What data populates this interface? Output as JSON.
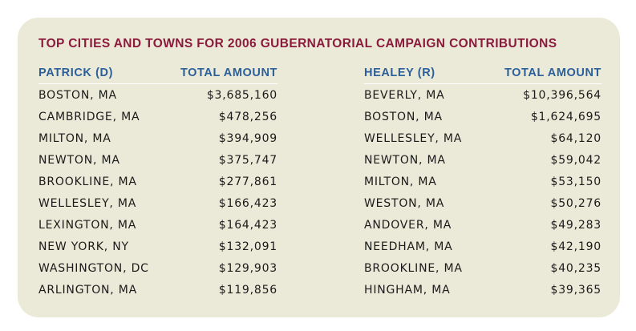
{
  "title": "TOP CITIES AND TOWNS FOR 2006 GUBERNATORIAL CAMPAIGN CONTRIBUTIONS",
  "patrick": {
    "header_name": "PATRICK (D)",
    "header_amount": "TOTAL AMOUNT",
    "rows": [
      {
        "city": "BOSTON, MA",
        "amount": "$3,685,160"
      },
      {
        "city": "CAMBRIDGE, MA",
        "amount": "$478,256"
      },
      {
        "city": "MILTON, MA",
        "amount": "$394,909"
      },
      {
        "city": "NEWTON, MA",
        "amount": "$375,747"
      },
      {
        "city": "BROOKLINE, MA",
        "amount": "$277,861"
      },
      {
        "city": "WELLESLEY, MA",
        "amount": "$166,423"
      },
      {
        "city": "LEXINGTON, MA",
        "amount": "$164,423"
      },
      {
        "city": "NEW YORK, NY",
        "amount": "$132,091"
      },
      {
        "city": "WASHINGTON, DC",
        "amount": "$129,903"
      },
      {
        "city": "ARLINGTON, MA",
        "amount": "$119,856"
      }
    ]
  },
  "healey": {
    "header_name": "HEALEY (R)",
    "header_amount": "TOTAL AMOUNT",
    "rows": [
      {
        "city": "BEVERLY, MA",
        "amount": "$10,396,564"
      },
      {
        "city": "BOSTON, MA",
        "amount": "$1,624,695"
      },
      {
        "city": "WELLESLEY, MA",
        "amount": "$64,120"
      },
      {
        "city": "NEWTON, MA",
        "amount": "$59,042"
      },
      {
        "city": "MILTON, MA",
        "amount": "$53,150"
      },
      {
        "city": "WESTON, MA",
        "amount": "$50,276"
      },
      {
        "city": "ANDOVER, MA",
        "amount": "$49,283"
      },
      {
        "city": "NEEDHAM, MA",
        "amount": "$42,190"
      },
      {
        "city": "BROOKLINE, MA",
        "amount": "$40,235"
      },
      {
        "city": "HINGHAM, MA",
        "amount": "$39,365"
      }
    ]
  },
  "colors": {
    "card_background": "#ebead8",
    "title": "#8b1a3c",
    "header": "#2b5f9a",
    "body_text": "#1a1a1a"
  }
}
